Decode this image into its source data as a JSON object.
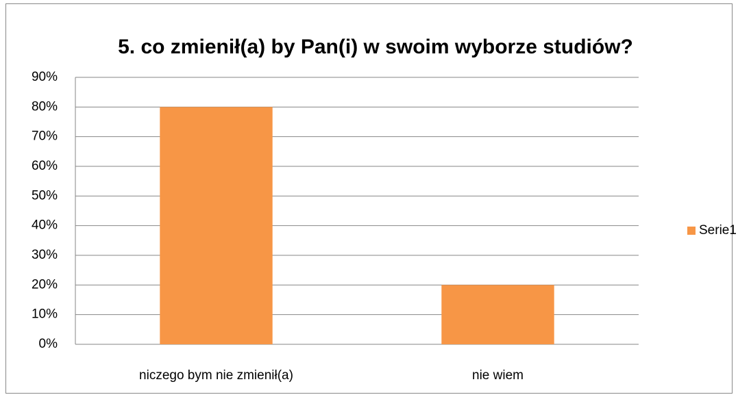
{
  "chart_data": {
    "type": "bar",
    "title": "5. co zmienił(a) by Pan(i) w swoim wyborze studiów?",
    "categories": [
      "niczego bym nie zmienił(a)",
      "nie wiem"
    ],
    "series": [
      {
        "name": "Serie1",
        "color": "#f79646",
        "values": [
          80,
          20
        ]
      }
    ],
    "ylim": [
      0,
      90
    ],
    "yticks": [
      {
        "value": 0,
        "label": "0%"
      },
      {
        "value": 10,
        "label": "10%"
      },
      {
        "value": 20,
        "label": "20%"
      },
      {
        "value": 30,
        "label": "30%"
      },
      {
        "value": 40,
        "label": "40%"
      },
      {
        "value": 50,
        "label": "50%"
      },
      {
        "value": 60,
        "label": "60%"
      },
      {
        "value": 70,
        "label": "70%"
      },
      {
        "value": 80,
        "label": "80%"
      },
      {
        "value": 90,
        "label": "90%"
      }
    ],
    "grid": true,
    "legend": "right"
  }
}
